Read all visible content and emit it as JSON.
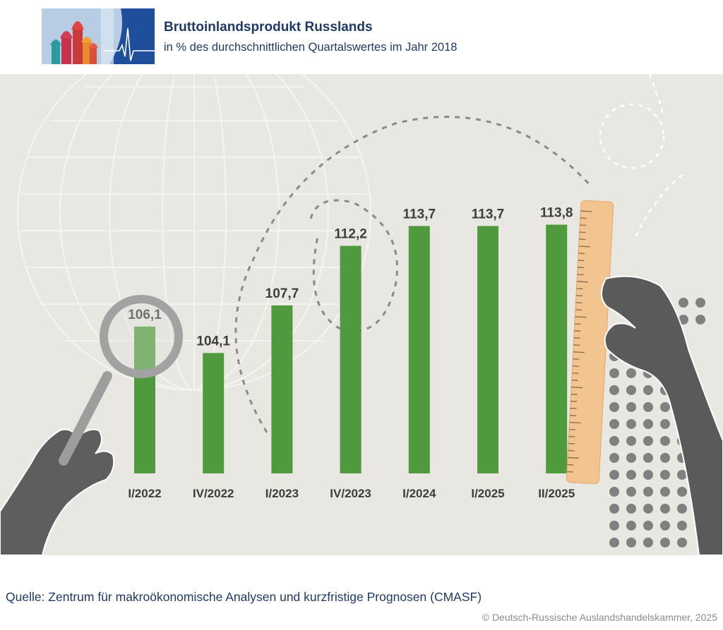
{
  "header": {
    "title": "Bruttoinlandsprodukt Russlands",
    "subtitle": "in % des durchschnittlichen Quartalswertes im Jahr 2018"
  },
  "footer": {
    "source": "Quelle: Zentrum für makroökonomische Analysen und kurzfristige Prognosen (CMASF)",
    "copyright": "© Deutsch-Russische Auslandshandelskammer, 2025"
  },
  "colors": {
    "bar": "#4e9a3c",
    "title": "#1f3a66",
    "panel": "#e8e7e2",
    "ruler": "#f2c48f",
    "label": "#3d3d3d"
  },
  "chart_data": {
    "type": "bar",
    "title": "Bruttoinlandsprodukt Russlands",
    "subtitle": "in % des durchschnittlichen Quartalswertes im Jahr 2018",
    "categories": [
      "I/2022",
      "IV/2022",
      "I/2023",
      "IV/2023",
      "I/2024",
      "I/2025",
      "II/2025"
    ],
    "values": [
      106.1,
      104.1,
      107.7,
      112.2,
      113.7,
      113.7,
      113.8
    ],
    "value_labels": [
      "106,1",
      "104,1",
      "107,7",
      "112,2",
      "113,7",
      "113,7",
      "113,8"
    ],
    "xlabel": "",
    "ylabel": "",
    "ylim": [
      95,
      115
    ],
    "grid": false,
    "legend": "none"
  }
}
